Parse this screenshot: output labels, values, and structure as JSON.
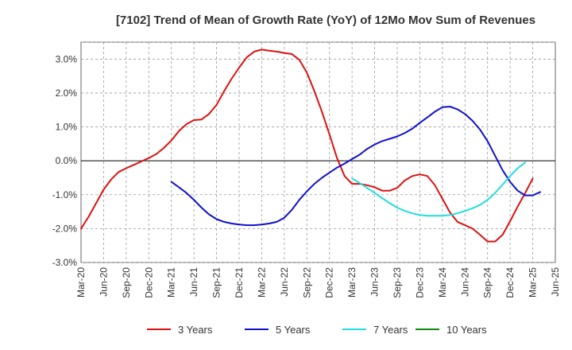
{
  "chart_data": {
    "type": "line",
    "title": "[7102]  Trend of Mean of Growth Rate (YoY) of 12Mo Mov Sum of Revenues",
    "xlabel": "",
    "ylabel": "",
    "ylim": [
      -3.0,
      3.5
    ],
    "y_ticks": [
      3.0,
      2.0,
      1.0,
      0.0,
      -1.0,
      -2.0,
      -3.0
    ],
    "y_tick_labels": [
      "3.0%",
      "2.0%",
      "1.0%",
      "0.0%",
      "-1.0%",
      "-2.0%",
      "-3.0%"
    ],
    "x_tick_labels": [
      "Mar-20",
      "Jun-20",
      "Sep-20",
      "Dec-20",
      "Mar-21",
      "Jun-21",
      "Sep-21",
      "Dec-21",
      "Mar-22",
      "Jun-22",
      "Sep-22",
      "Dec-22",
      "Mar-23",
      "Jun-23",
      "Sep-23",
      "Dec-23",
      "Mar-24",
      "Jun-24",
      "Sep-24",
      "Dec-24",
      "Mar-25",
      "Jun-25"
    ],
    "x_start": "Mar-20",
    "grid": true,
    "legend_position": "bottom",
    "series": [
      {
        "name": "3 Years",
        "color": "#dd1111",
        "start_index": 0,
        "values": [
          -2.0,
          -1.65,
          -1.25,
          -0.85,
          -0.55,
          -0.33,
          -0.22,
          -0.12,
          -0.02,
          0.08,
          0.2,
          0.38,
          0.6,
          0.88,
          1.08,
          1.2,
          1.22,
          1.38,
          1.65,
          2.05,
          2.42,
          2.75,
          3.05,
          3.22,
          3.28,
          3.25,
          3.22,
          3.18,
          3.15,
          2.98,
          2.6,
          2.05,
          1.45,
          0.78,
          0.08,
          -0.45,
          -0.68,
          -0.68,
          -0.72,
          -0.78,
          -0.88,
          -0.88,
          -0.8,
          -0.58,
          -0.45,
          -0.4,
          -0.45,
          -0.72,
          -1.12,
          -1.52,
          -1.8,
          -1.9,
          -2.0,
          -2.18,
          -2.38,
          -2.38,
          -2.18,
          -1.78,
          -1.35,
          -0.95,
          -0.52
        ]
      },
      {
        "name": "5 Years",
        "color": "#1111cc",
        "start_index": 12,
        "values": [
          -0.62,
          -0.78,
          -0.95,
          -1.15,
          -1.38,
          -1.58,
          -1.72,
          -1.8,
          -1.85,
          -1.88,
          -1.9,
          -1.9,
          -1.88,
          -1.85,
          -1.8,
          -1.68,
          -1.45,
          -1.15,
          -0.9,
          -0.68,
          -0.5,
          -0.35,
          -0.2,
          -0.08,
          0.05,
          0.18,
          0.35,
          0.48,
          0.58,
          0.65,
          0.72,
          0.82,
          0.95,
          1.12,
          1.28,
          1.45,
          1.58,
          1.6,
          1.52,
          1.38,
          1.18,
          0.92,
          0.58,
          0.15,
          -0.28,
          -0.62,
          -0.88,
          -1.02,
          -1.02,
          -0.92
        ]
      },
      {
        "name": "7 Years",
        "color": "#22dddd",
        "start_index": 36,
        "values": [
          -0.52,
          -0.65,
          -0.8,
          -0.95,
          -1.1,
          -1.25,
          -1.38,
          -1.48,
          -1.55,
          -1.6,
          -1.62,
          -1.62,
          -1.62,
          -1.6,
          -1.55,
          -1.48,
          -1.4,
          -1.3,
          -1.15,
          -0.95,
          -0.7,
          -0.45,
          -0.22,
          -0.05
        ]
      },
      {
        "name": "10 Years",
        "color": "#118811",
        "start_index": 0,
        "values": []
      }
    ]
  }
}
